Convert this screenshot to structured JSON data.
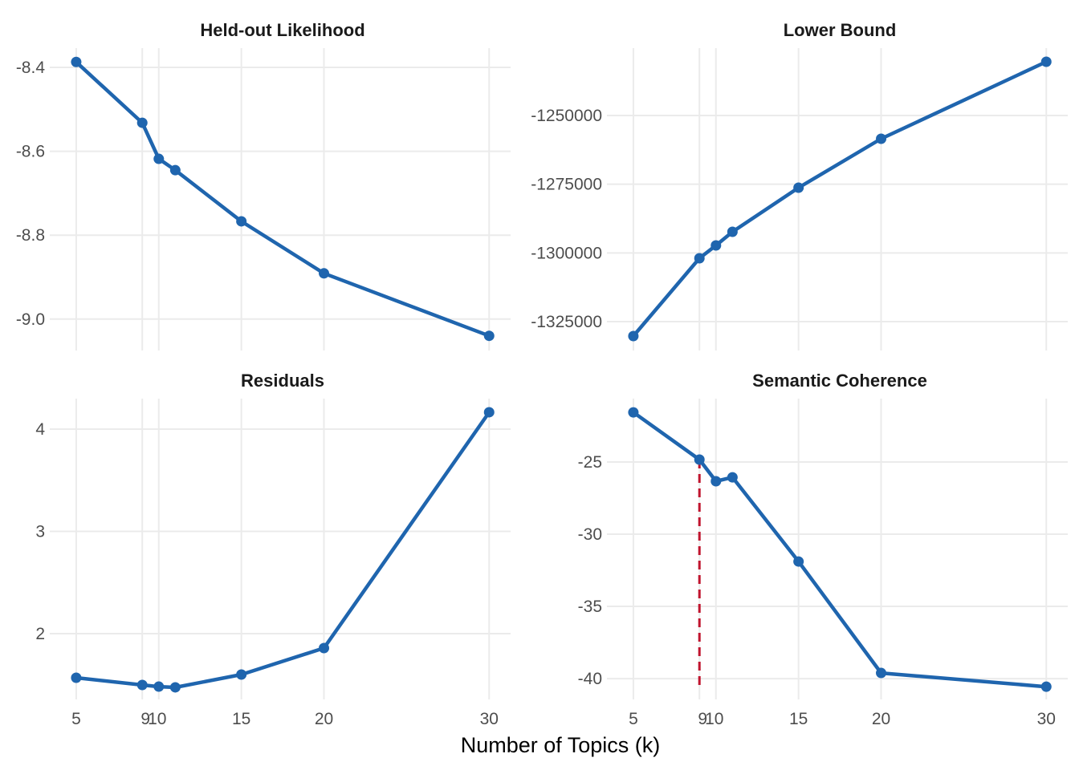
{
  "chart_data": {
    "type": "line",
    "xlabel": "Number of Topics (k)",
    "x_ticks": [
      5,
      9,
      10,
      15,
      20,
      30
    ],
    "x_tick_labels": [
      "5",
      "9",
      "10",
      "15",
      "20",
      "30"
    ],
    "xlim": [
      3.4,
      31.3
    ],
    "line_color": "#1f65ae",
    "marker_color": "#1f65ae",
    "highlight": {
      "x": 9,
      "facet": "Semantic Coherence",
      "style": "dashed",
      "color": "#c0142e"
    },
    "facets": [
      {
        "title": "Held-out Likelihood",
        "x": [
          5,
          9,
          10,
          11,
          15,
          20,
          30
        ],
        "y": [
          -8.387,
          -8.532,
          -8.618,
          -8.645,
          -8.767,
          -8.891,
          -9.04
        ],
        "y_ticks": [
          -8.4,
          -8.6,
          -8.8,
          -9.0
        ],
        "y_tick_labels": [
          "-8.4",
          "-8.6",
          "-8.8",
          "-9.0"
        ],
        "ylim": [
          -9.075,
          -8.354
        ]
      },
      {
        "title": "Lower Bound",
        "x": [
          5,
          9,
          10,
          11,
          15,
          20,
          30
        ],
        "y": [
          -1330250,
          -1301940,
          -1297270,
          -1292310,
          -1276260,
          -1258460,
          -1230450
        ],
        "y_ticks": [
          -1250000,
          -1275000,
          -1300000,
          -1325000
        ],
        "y_tick_labels": [
          "-1250000",
          "-1275000",
          "-1300000",
          "-1325000"
        ],
        "ylim": [
          -1335500,
          -1225490
        ]
      },
      {
        "title": "Residuals",
        "x": [
          5,
          9,
          10,
          11,
          15,
          20,
          30
        ],
        "y": [
          1.569,
          1.498,
          1.482,
          1.475,
          1.6,
          1.859,
          4.165
        ],
        "y_ticks": [
          4,
          3,
          2
        ],
        "y_tick_labels": [
          "4",
          "3",
          "2"
        ],
        "ylim": [
          1.357,
          4.298
        ]
      },
      {
        "title": "Semantic Coherence",
        "x": [
          5,
          9,
          10,
          11,
          15,
          20,
          30
        ],
        "y": [
          -21.56,
          -24.83,
          -26.33,
          -26.06,
          -31.89,
          -39.61,
          -40.56
        ],
        "y_ticks": [
          -25,
          -30,
          -35,
          -40
        ],
        "y_tick_labels": [
          "-25",
          "-30",
          "-35",
          "-40"
        ],
        "ylim": [
          -41.44,
          -20.61
        ]
      }
    ]
  }
}
